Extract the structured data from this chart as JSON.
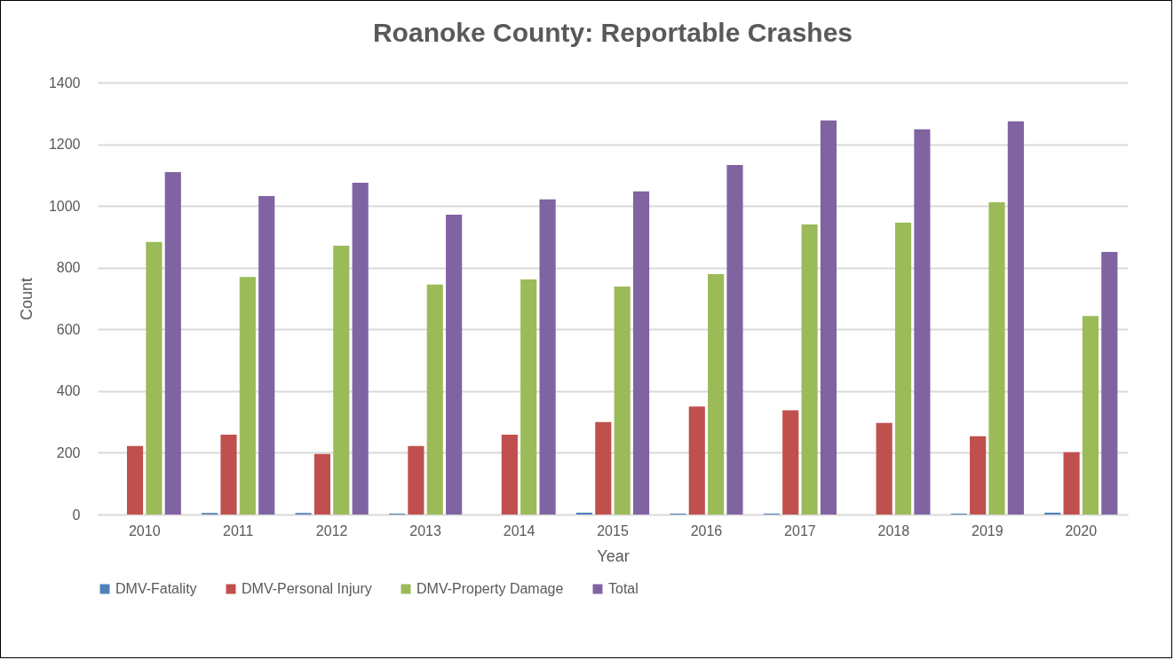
{
  "chart_data": {
    "type": "bar",
    "title": "Roanoke County: Reportable Crashes",
    "xlabel": "Year",
    "ylabel": "Count",
    "categories": [
      "2010",
      "2011",
      "2012",
      "2013",
      "2014",
      "2015",
      "2016",
      "2017",
      "2018",
      "2019",
      "2020"
    ],
    "series": [
      {
        "name": "DMV-Fatality",
        "color": "#4f81bd",
        "values": [
          0,
          5,
          5,
          3,
          0,
          6,
          3,
          3,
          0,
          3,
          6
        ]
      },
      {
        "name": "DMV-Personal Injury",
        "color": "#c0504d",
        "values": [
          222,
          259,
          196,
          222,
          259,
          300,
          350,
          338,
          297,
          254,
          202
        ]
      },
      {
        "name": "DMV-Property Damage",
        "color": "#9bbb59",
        "values": [
          883,
          770,
          871,
          745,
          762,
          739,
          779,
          940,
          946,
          1012,
          643
        ]
      },
      {
        "name": "Total",
        "color": "#8064a2",
        "values": [
          1110,
          1032,
          1075,
          972,
          1021,
          1047,
          1133,
          1277,
          1248,
          1274,
          851
        ]
      }
    ],
    "ylim": [
      0,
      1400
    ],
    "yticks": [
      0,
      200,
      400,
      600,
      800,
      1000,
      1200,
      1400
    ],
    "grid": "y",
    "legend": "bottom"
  }
}
